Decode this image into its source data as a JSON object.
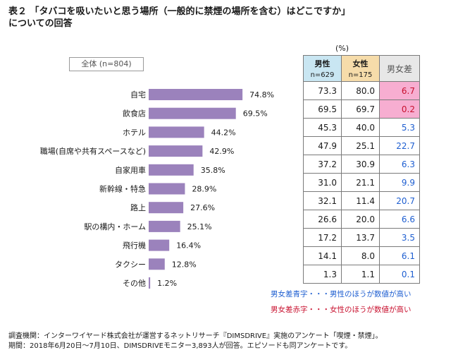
{
  "title_line1": "表２ 「タバコを吸いたいと思う場所（一般的に禁煙の場所を含む）はどこですか」",
  "title_line2": "についての回答",
  "overall_label": "全体 (n=804)",
  "unit": "(%)",
  "table_header": {
    "male": "男性",
    "male_n": "n=629",
    "female": "女性",
    "female_n": "n=175",
    "diff": "男女差"
  },
  "chart_data": {
    "type": "bar",
    "orientation": "horizontal",
    "categories": [
      "自宅",
      "飲食店",
      "ホテル",
      "職場(自席や共有スペースなど)",
      "自家用車",
      "新幹線・特急",
      "路上",
      "駅の構内・ホーム",
      "飛行機",
      "タクシー",
      "その他"
    ],
    "values": [
      74.8,
      69.5,
      44.2,
      42.9,
      35.8,
      28.9,
      27.6,
      25.1,
      16.4,
      12.8,
      1.2
    ],
    "value_labels": [
      "74.8%",
      "69.5%",
      "44.2%",
      "42.9%",
      "35.8%",
      "28.9%",
      "27.6%",
      "25.1%",
      "16.4%",
      "12.8%",
      "1.2%"
    ],
    "xlim": [
      0,
      100
    ],
    "bar_color": "#9b82bc"
  },
  "table_rows": [
    {
      "male": "73.3",
      "female": "80.0",
      "diff": "6.7",
      "sign": "red"
    },
    {
      "male": "69.5",
      "female": "69.7",
      "diff": "0.2",
      "sign": "red"
    },
    {
      "male": "45.3",
      "female": "40.0",
      "diff": "5.3",
      "sign": "blue"
    },
    {
      "male": "47.9",
      "female": "25.1",
      "diff": "22.7",
      "sign": "blue"
    },
    {
      "male": "37.2",
      "female": "30.9",
      "diff": "6.3",
      "sign": "blue"
    },
    {
      "male": "31.0",
      "female": "21.1",
      "diff": "9.9",
      "sign": "blue"
    },
    {
      "male": "32.1",
      "female": "11.4",
      "diff": "20.7",
      "sign": "blue"
    },
    {
      "male": "26.6",
      "female": "20.0",
      "diff": "6.6",
      "sign": "blue"
    },
    {
      "male": "17.2",
      "female": "13.7",
      "diff": "3.5",
      "sign": "blue"
    },
    {
      "male": "14.1",
      "female": "8.0",
      "diff": "6.1",
      "sign": "blue"
    },
    {
      "male": "1.3",
      "female": "1.1",
      "diff": "0.1",
      "sign": "blue"
    }
  ],
  "legend_blue": "男女差青字・・・男性のほうが数値が高い",
  "legend_red": "男女差赤字・・・女性のほうが数値が高い",
  "footnote1": "調査機関：インターワイヤード株式会社が運営するネットリサーチ『DIMSDRIVE』実施のアンケート「喫煙・禁煙」。",
  "footnote2": "期間：2018年6月20日～7月10日、DIMSDRIVEモニター3,893人が回答。エピソードも同アンケートです。",
  "colors": {
    "male_header": "#c9e6f2",
    "female_header": "#f6dcaa",
    "diff_header": "#e7e7e7",
    "blue": "#1f5fd1",
    "red": "#c8102e",
    "red_bg": "#f7aed1"
  }
}
